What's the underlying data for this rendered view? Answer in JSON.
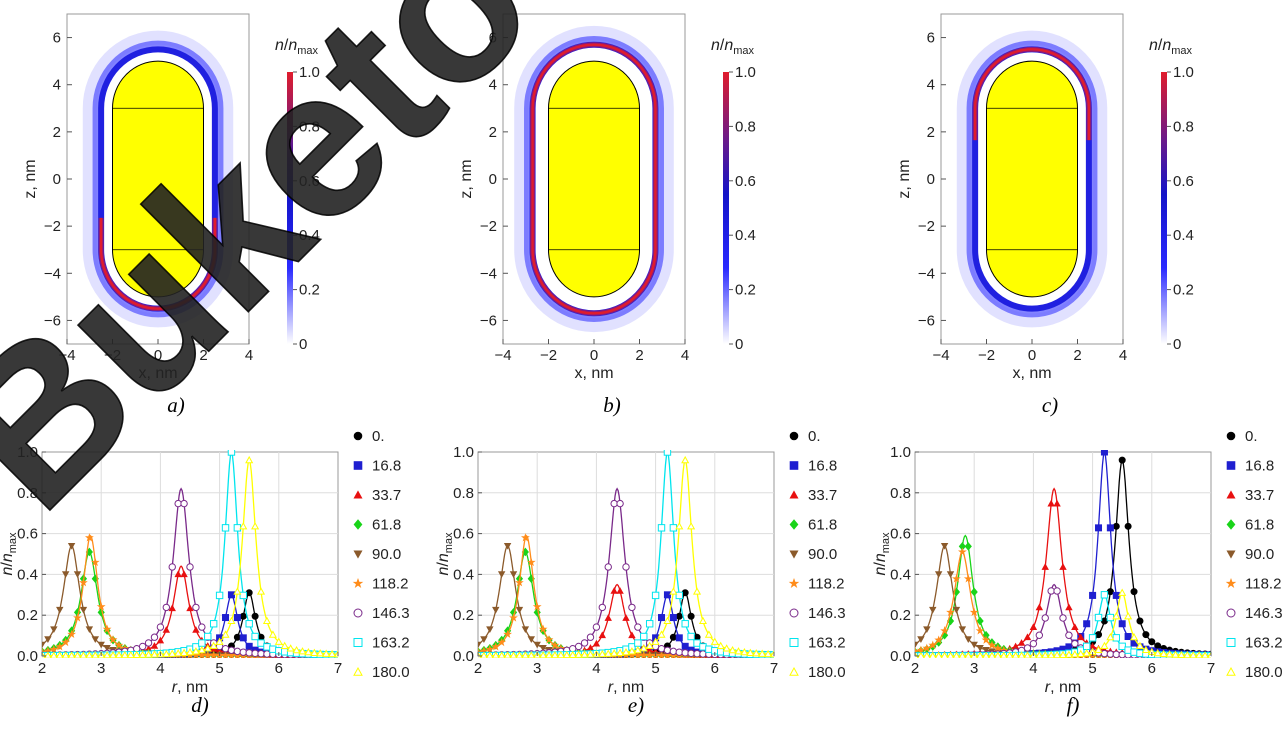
{
  "top_panels": [
    {
      "caption": "a)",
      "xlabel": "x, nm",
      "ylabel": "z, nm",
      "xticks": [
        "−4",
        "−2",
        "0",
        "2",
        "4"
      ],
      "yticks": [
        "6",
        "4",
        "2",
        "0",
        "−2",
        "−4",
        "−6"
      ],
      "colorbar": {
        "label": "n/n",
        "label_sub": "max",
        "ticks": [
          "1.0",
          "0.8",
          "0.6",
          "0.4",
          "0.2",
          "0"
        ]
      }
    },
    {
      "caption": "b)",
      "xlabel": "x, nm",
      "ylabel": "z, nm",
      "xticks": [
        "−4",
        "−2",
        "0",
        "2",
        "4"
      ],
      "yticks": [
        "6",
        "4",
        "2",
        "0",
        "−2",
        "−4",
        "−6"
      ],
      "colorbar": {
        "label": "n/n",
        "label_sub": "max",
        "ticks": [
          "1.0",
          "0.8",
          "0.6",
          "0.4",
          "0.2",
          "0"
        ]
      }
    },
    {
      "caption": "c)",
      "xlabel": "x, nm",
      "ylabel": "z, nm",
      "xticks": [
        "−4",
        "−2",
        "0",
        "2",
        "4"
      ],
      "yticks": [
        "6",
        "4",
        "2",
        "0",
        "−2",
        "−4",
        "−6"
      ],
      "colorbar": {
        "label": "n/n",
        "label_sub": "max",
        "ticks": [
          "1.0",
          "0.8",
          "0.6",
          "0.4",
          "0.2",
          "0"
        ]
      }
    }
  ],
  "bottom_panels": [
    {
      "caption": "d)",
      "xlabel": "r, nm",
      "ylabel": "n/n",
      "ylabel_sub": "max",
      "xticks": [
        "2",
        "3",
        "4",
        "5",
        "6",
        "7"
      ],
      "yticks": [
        "0.0",
        "0.2",
        "0.4",
        "0.6",
        "0.8",
        "1.0"
      ]
    },
    {
      "caption": "e)",
      "xlabel": "r, nm",
      "ylabel": "n/n",
      "ylabel_sub": "max",
      "xticks": [
        "2",
        "3",
        "4",
        "5",
        "6",
        "7"
      ],
      "yticks": [
        "0.0",
        "0.2",
        "0.4",
        "0.6",
        "0.8",
        "1.0"
      ]
    },
    {
      "caption": "f)",
      "xlabel": "r, nm",
      "ylabel": "n/n",
      "ylabel_sub": "max",
      "xticks": [
        "2",
        "3",
        "4",
        "5",
        "6",
        "7"
      ],
      "yticks": [
        "0.0",
        "0.2",
        "0.4",
        "0.6",
        "0.8",
        "1.0"
      ]
    }
  ],
  "watermark": "Buketov University",
  "chart_data": [
    {
      "type": "heatmap",
      "panel": "a)",
      "xlim": [
        -4,
        4
      ],
      "ylim": [
        -7,
        7
      ],
      "particle": "spherocylinder",
      "particle_color": "#ffff00",
      "particle_half_width_nm": 2.0,
      "particle_cylinder_half_length_nm": 3.0,
      "shell_offset_nm": 0.5,
      "shell_max_region": "bottom cap",
      "colorbar_range": [
        0,
        1.0
      ],
      "colorscale": [
        "#ffffff",
        "#1e1ee6",
        "#6a1a8a",
        "#e01c2c"
      ]
    },
    {
      "type": "heatmap",
      "panel": "b)",
      "xlim": [
        -4,
        4
      ],
      "ylim": [
        -7,
        7
      ],
      "particle": "spherocylinder",
      "particle_color": "#ffff00",
      "particle_half_width_nm": 2.0,
      "particle_cylinder_half_length_nm": 3.0,
      "shell_offset_nm": 0.7,
      "shell_max_region": "uniform",
      "colorbar_range": [
        0,
        1.0
      ],
      "colorscale": [
        "#ffffff",
        "#1e1ee6",
        "#6a1a8a",
        "#e01c2c"
      ]
    },
    {
      "type": "heatmap",
      "panel": "c)",
      "xlim": [
        -4,
        4
      ],
      "ylim": [
        -7,
        7
      ],
      "particle": "spherocylinder",
      "particle_color": "#ffff00",
      "particle_half_width_nm": 2.0,
      "particle_cylinder_half_length_nm": 3.0,
      "shell_offset_nm": 0.5,
      "shell_max_region": "top cap",
      "colorbar_range": [
        0,
        1.0
      ],
      "colorscale": [
        "#ffffff",
        "#1e1ee6",
        "#6a1a8a",
        "#e01c2c"
      ]
    },
    {
      "type": "line",
      "panel": "d)",
      "xlim": [
        2,
        7
      ],
      "ylim": [
        0,
        1.0
      ],
      "grid": true,
      "legend": "right",
      "series": [
        {
          "name": "0.",
          "color": "#000000",
          "marker": "circle",
          "peak_r": 5.5,
          "peak_n": 0.31,
          "width": 0.13
        },
        {
          "name": "16.8",
          "color": "#1f1fd0",
          "marker": "square",
          "peak_r": 5.2,
          "peak_n": 0.3,
          "width": 0.13
        },
        {
          "name": "33.7",
          "color": "#e81010",
          "marker": "triangle",
          "peak_r": 4.35,
          "peak_n": 0.44,
          "width": 0.16
        },
        {
          "name": "61.8",
          "color": "#19d419",
          "marker": "diamond",
          "peak_r": 2.8,
          "peak_n": 0.51,
          "width": 0.17
        },
        {
          "name": "90.0",
          "color": "#8b5a2b",
          "marker": "triangle-down",
          "peak_r": 2.5,
          "peak_n": 0.54,
          "width": 0.17
        },
        {
          "name": "118.2",
          "color": "#ff8c1a",
          "marker": "star",
          "peak_r": 2.82,
          "peak_n": 0.59,
          "width": 0.15
        },
        {
          "name": "146.3",
          "color": "#7a2a8a",
          "marker": "open-circle",
          "peak_r": 4.35,
          "peak_n": 0.82,
          "width": 0.16
        },
        {
          "name": "163.2",
          "color": "#00e5ee",
          "marker": "open-square",
          "peak_r": 5.2,
          "peak_n": 1.0,
          "width": 0.13
        },
        {
          "name": "180.0",
          "color": "#ffff00",
          "marker": "open-triangle",
          "peak_r": 5.5,
          "peak_n": 0.96,
          "width": 0.14
        }
      ]
    },
    {
      "type": "line",
      "panel": "e)",
      "xlim": [
        2,
        7
      ],
      "ylim": [
        0,
        1.0
      ],
      "grid": true,
      "legend": "right",
      "series": [
        {
          "name": "0.",
          "color": "#000000",
          "marker": "circle",
          "peak_r": 5.5,
          "peak_n": 0.31,
          "width": 0.13
        },
        {
          "name": "16.8",
          "color": "#1f1fd0",
          "marker": "square",
          "peak_r": 5.2,
          "peak_n": 0.3,
          "width": 0.13
        },
        {
          "name": "33.7",
          "color": "#e81010",
          "marker": "triangle",
          "peak_r": 4.35,
          "peak_n": 0.35,
          "width": 0.16
        },
        {
          "name": "61.8",
          "color": "#19d419",
          "marker": "diamond",
          "peak_r": 2.8,
          "peak_n": 0.51,
          "width": 0.17
        },
        {
          "name": "90.0",
          "color": "#8b5a2b",
          "marker": "triangle-down",
          "peak_r": 2.5,
          "peak_n": 0.54,
          "width": 0.17
        },
        {
          "name": "118.2",
          "color": "#ff8c1a",
          "marker": "star",
          "peak_r": 2.82,
          "peak_n": 0.59,
          "width": 0.15
        },
        {
          "name": "146.3",
          "color": "#7a2a8a",
          "marker": "open-circle",
          "peak_r": 4.35,
          "peak_n": 0.82,
          "width": 0.16
        },
        {
          "name": "163.2",
          "color": "#00e5ee",
          "marker": "open-square",
          "peak_r": 5.2,
          "peak_n": 1.0,
          "width": 0.13
        },
        {
          "name": "180.0",
          "color": "#ffff00",
          "marker": "open-triangle",
          "peak_r": 5.5,
          "peak_n": 0.96,
          "width": 0.14
        }
      ]
    },
    {
      "type": "line",
      "panel": "f)",
      "xlim": [
        2,
        7
      ],
      "ylim": [
        0,
        1.0
      ],
      "grid": true,
      "legend": "right",
      "series": [
        {
          "name": "0.",
          "color": "#000000",
          "marker": "circle",
          "peak_r": 5.5,
          "peak_n": 0.96,
          "width": 0.14
        },
        {
          "name": "16.8",
          "color": "#1f1fd0",
          "marker": "square",
          "peak_r": 5.2,
          "peak_n": 1.0,
          "width": 0.13
        },
        {
          "name": "33.7",
          "color": "#e81010",
          "marker": "triangle",
          "peak_r": 4.35,
          "peak_n": 0.82,
          "width": 0.16
        },
        {
          "name": "61.8",
          "color": "#19d419",
          "marker": "diamond",
          "peak_r": 2.85,
          "peak_n": 0.59,
          "width": 0.16
        },
        {
          "name": "90.0",
          "color": "#8b5a2b",
          "marker": "triangle-down",
          "peak_r": 2.5,
          "peak_n": 0.54,
          "width": 0.17
        },
        {
          "name": "118.2",
          "color": "#ff8c1a",
          "marker": "star",
          "peak_r": 2.8,
          "peak_n": 0.51,
          "width": 0.17
        },
        {
          "name": "146.3",
          "color": "#7a2a8a",
          "marker": "open-circle",
          "peak_r": 4.35,
          "peak_n": 0.35,
          "width": 0.16
        },
        {
          "name": "163.2",
          "color": "#00e5ee",
          "marker": "open-square",
          "peak_r": 5.2,
          "peak_n": 0.3,
          "width": 0.13
        },
        {
          "name": "180.0",
          "color": "#ffff00",
          "marker": "open-triangle",
          "peak_r": 5.5,
          "peak_n": 0.31,
          "width": 0.13
        }
      ]
    }
  ]
}
